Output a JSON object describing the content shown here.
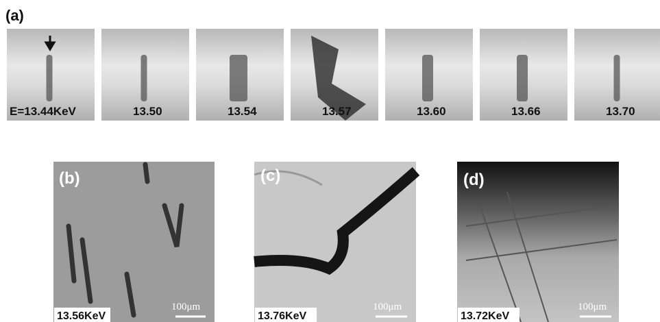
{
  "panel_a": {
    "label": "(a)",
    "frames": [
      "E=13.44KeV",
      "13.50",
      "13.54",
      "13.57",
      "13.60",
      "13.66",
      "13.70"
    ]
  },
  "panels": [
    {
      "label": "(b)",
      "energy": "13.56KeV",
      "scale": "100μm"
    },
    {
      "label": "(c)",
      "energy": "13.76KeV",
      "scale": "100μm"
    },
    {
      "label": "(d)",
      "energy": "13.72KeV",
      "scale": "100μm"
    }
  ]
}
